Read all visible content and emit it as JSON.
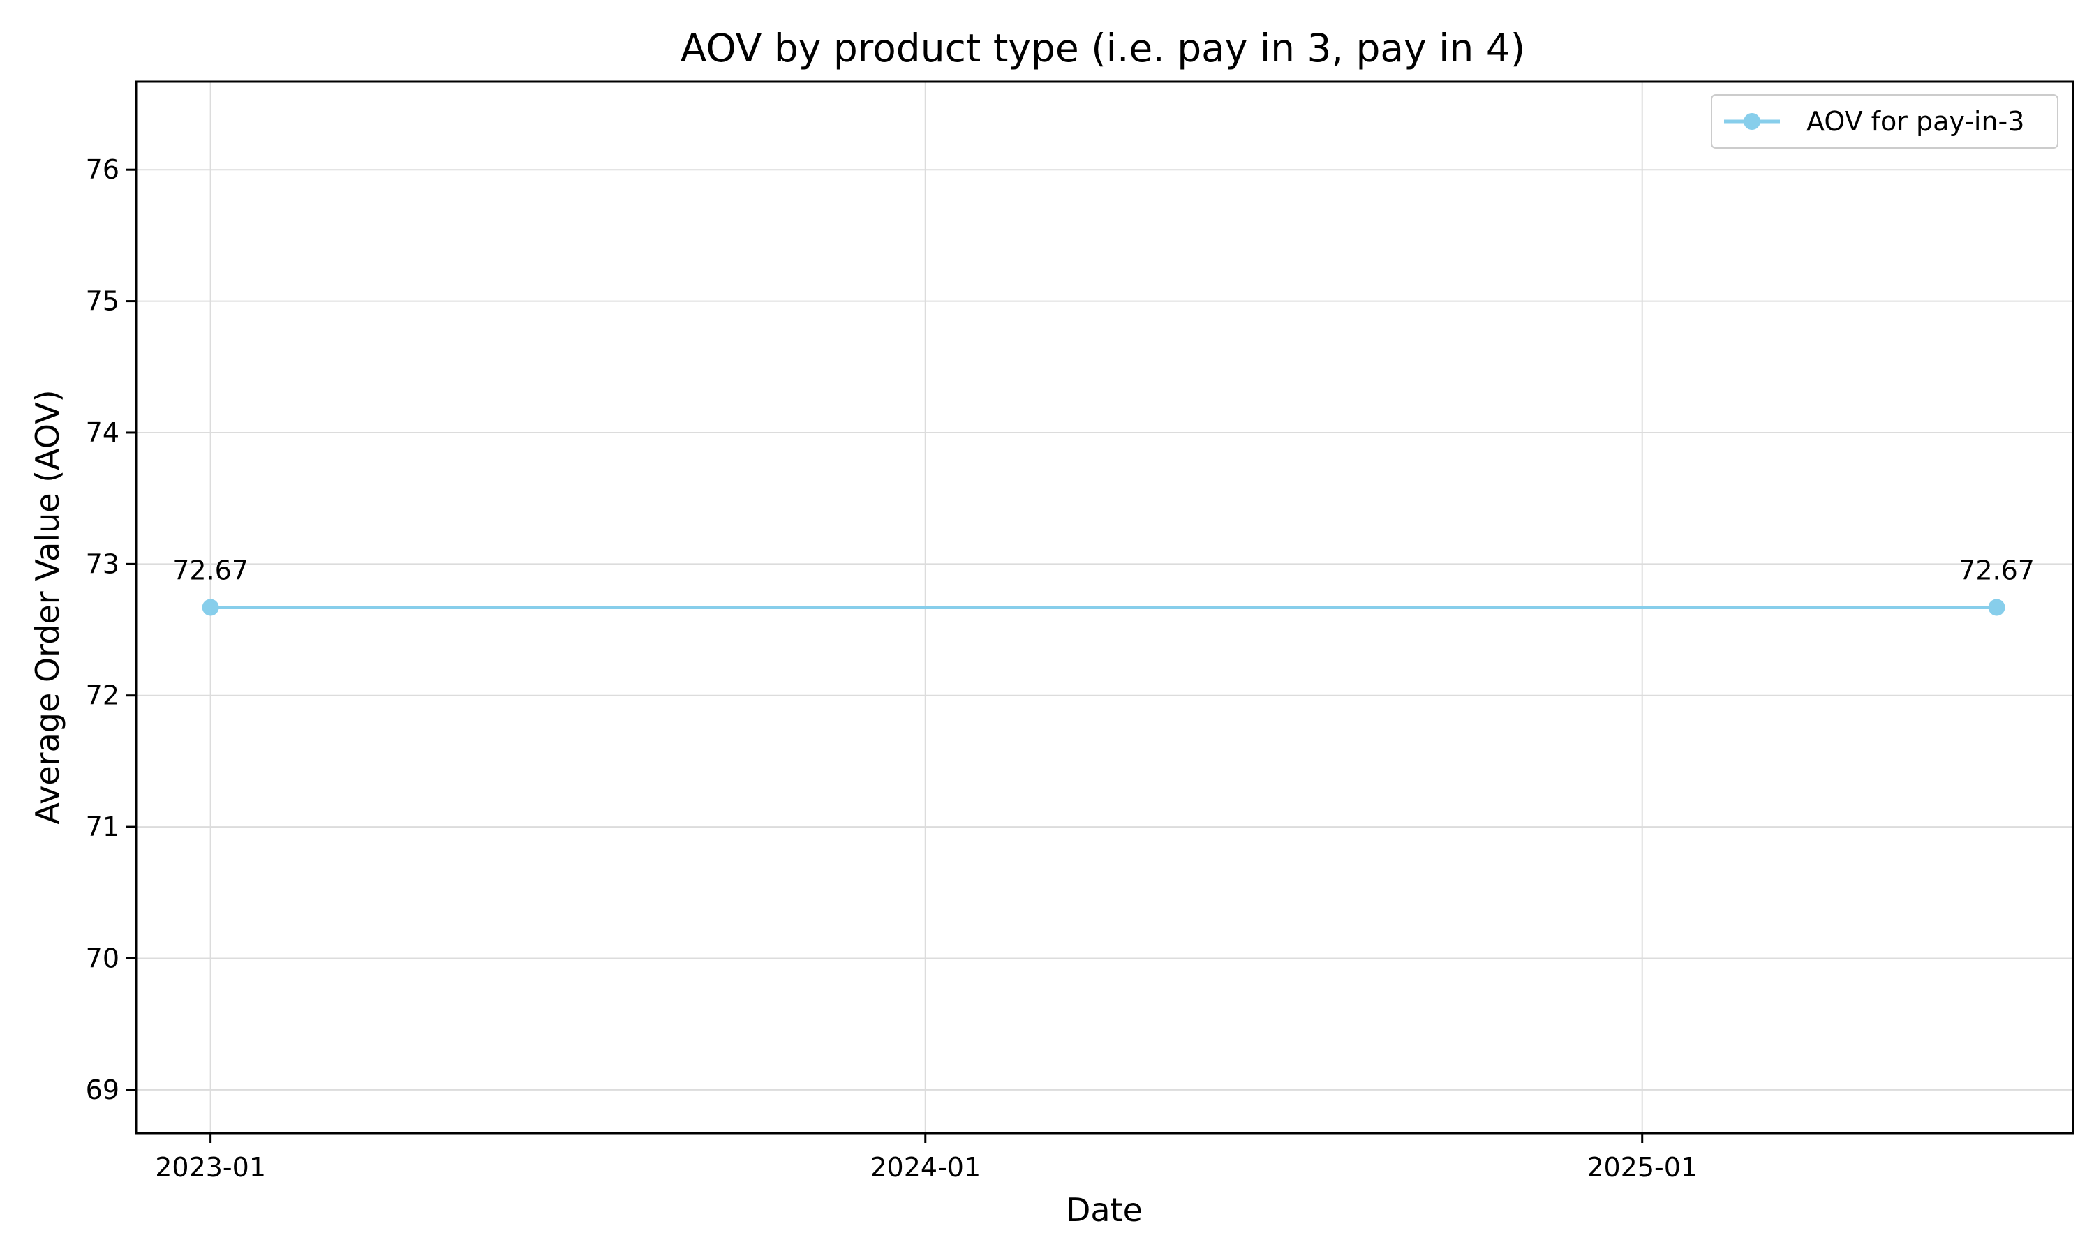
{
  "chart_data": {
    "type": "line",
    "title": "AOV by product type (i.e. pay in 3, pay in 4)",
    "xlabel": "Date",
    "ylabel": "Average Order Value (AOV)",
    "x_ticks": [
      {
        "date": "2023-01-01",
        "label": "2023-01"
      },
      {
        "date": "2024-01-01",
        "label": "2024-01"
      },
      {
        "date": "2025-01-01",
        "label": "2025-01"
      }
    ],
    "y_ticks": [
      69,
      70,
      71,
      72,
      73,
      74,
      75,
      76
    ],
    "xlim": [
      "2022-11-24",
      "2025-08-09"
    ],
    "ylim": [
      68.67,
      76.67
    ],
    "grid": true,
    "legend_position": "top-right",
    "series": [
      {
        "name": "AOV for pay-in-3",
        "color": "#87ceeb",
        "marker": "circle",
        "points": [
          {
            "x": "2023-01-01",
            "y": 72.67,
            "label": "72.67"
          },
          {
            "x": "2025-07-01",
            "y": 72.67,
            "label": "72.67"
          }
        ]
      }
    ]
  }
}
